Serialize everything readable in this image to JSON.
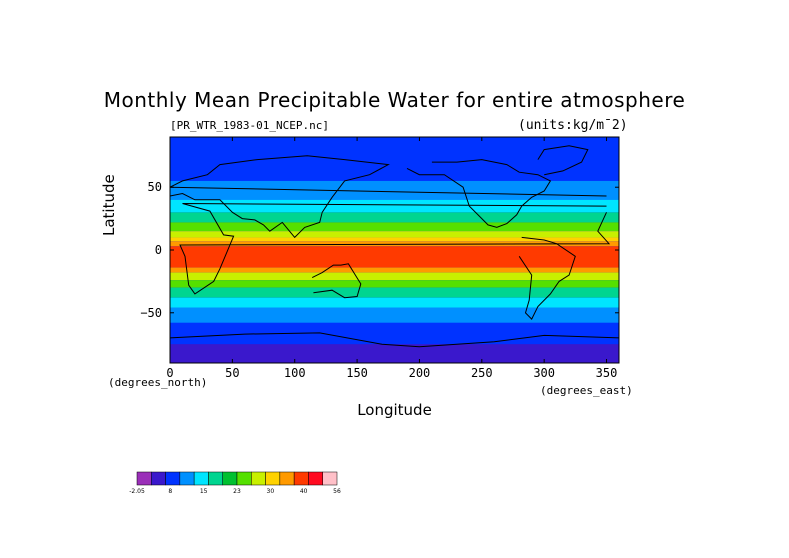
{
  "title": "Monthly Mean Precipitable Water for entire atmosphere",
  "file_label": "[PR_WTR_1983-01_NCEP.nc]",
  "units_label": "(units:kg/m¯2)",
  "xlabel": "Longitude",
  "ylabel": "Latitude",
  "x_unit_left": "(degrees_north)",
  "x_unit_right": "(degrees_east)",
  "xticks": [
    "0",
    "50",
    "100",
    "150",
    "200",
    "250",
    "300",
    "350"
  ],
  "yticks": [
    "50",
    "0",
    "−50"
  ],
  "colorbar": {
    "labels": [
      "-2.05",
      "8",
      "15",
      "23",
      "30",
      "40",
      "56"
    ],
    "colors": [
      "#9a2fb8",
      "#3a18cc",
      "#0033ff",
      "#0090ff",
      "#00e5ff",
      "#00d590",
      "#00c030",
      "#55e000",
      "#c8f000",
      "#ffd200",
      "#ff9a00",
      "#ff3a00",
      "#ff0a20",
      "#ffc0c8"
    ]
  },
  "chart_data": {
    "type": "heatmap",
    "title": "Monthly Mean Precipitable Water for entire atmosphere",
    "xlabel": "Longitude",
    "ylabel": "Latitude",
    "xlim": [
      0,
      360
    ],
    "ylim": [
      -90,
      90
    ],
    "units": "kg/m^2",
    "colorscale_range": [
      -2.05,
      56
    ],
    "description_values": {
      "tropics_max": 56,
      "polar_min": -2.05
    }
  }
}
